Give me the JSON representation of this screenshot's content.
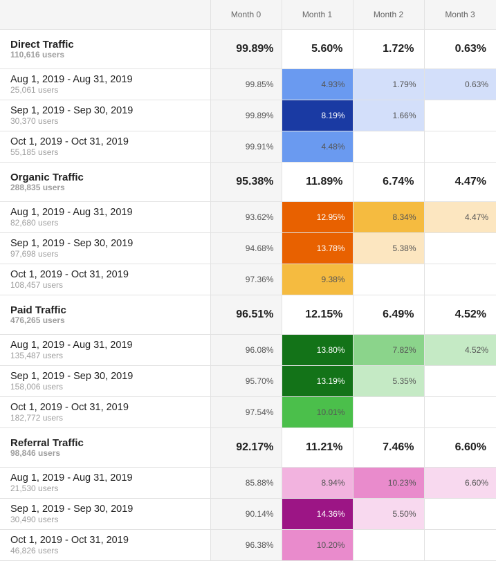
{
  "header": {
    "columns": [
      "Month 0",
      "Month 1",
      "Month 2",
      "Month 3"
    ]
  },
  "chart_data": {
    "type": "table",
    "columns": [
      "Month 0",
      "Month 1",
      "Month 2",
      "Month 3"
    ],
    "segments": [
      {
        "name": "Direct Traffic",
        "users": "110,616 users",
        "totals": [
          "99.89%",
          "5.60%",
          "1.72%",
          "0.63%"
        ],
        "rows": [
          {
            "label": "Aug 1, 2019 - Aug 31, 2019",
            "users": "25,061 users",
            "values": [
              "99.85%",
              "4.93%",
              "1.79%",
              "0.63%"
            ],
            "colors": [
              "#f5f5f5",
              "#6a9af0",
              "#d3dffa",
              "#d3dffa"
            ],
            "text_colors": [
              "#555555",
              "#555555",
              "#555555",
              "#555555"
            ]
          },
          {
            "label": "Sep 1, 2019 - Sep 30, 2019",
            "users": "30,370 users",
            "values": [
              "99.89%",
              "8.19%",
              "1.66%",
              ""
            ],
            "colors": [
              "#f5f5f5",
              "#1a3aa3",
              "#d3dffa",
              "#ffffff"
            ],
            "text_colors": [
              "#555555",
              "#ffffff",
              "#555555",
              "#555555"
            ]
          },
          {
            "label": "Oct 1, 2019 - Oct 31, 2019",
            "users": "55,185 users",
            "values": [
              "99.91%",
              "4.48%",
              "",
              ""
            ],
            "colors": [
              "#f5f5f5",
              "#6a9af0",
              "#ffffff",
              "#ffffff"
            ],
            "text_colors": [
              "#555555",
              "#555555",
              "#555555",
              "#555555"
            ]
          }
        ]
      },
      {
        "name": "Organic Traffic",
        "users": "288,835 users",
        "totals": [
          "95.38%",
          "11.89%",
          "6.74%",
          "4.47%"
        ],
        "rows": [
          {
            "label": "Aug 1, 2019 - Aug 31, 2019",
            "users": "82,680 users",
            "values": [
              "93.62%",
              "12.95%",
              "8.34%",
              "4.47%"
            ],
            "colors": [
              "#f5f5f5",
              "#e86100",
              "#f5bb40",
              "#fce6c0"
            ],
            "text_colors": [
              "#555555",
              "#ffffff",
              "#555555",
              "#555555"
            ]
          },
          {
            "label": "Sep 1, 2019 - Sep 30, 2019",
            "users": "97,698 users",
            "values": [
              "94.68%",
              "13.78%",
              "5.38%",
              ""
            ],
            "colors": [
              "#f5f5f5",
              "#e86100",
              "#fce6c0",
              "#ffffff"
            ],
            "text_colors": [
              "#555555",
              "#ffffff",
              "#555555",
              "#555555"
            ]
          },
          {
            "label": "Oct 1, 2019 - Oct 31, 2019",
            "users": "108,457 users",
            "values": [
              "97.36%",
              "9.38%",
              "",
              ""
            ],
            "colors": [
              "#f5f5f5",
              "#f5bb40",
              "#ffffff",
              "#ffffff"
            ],
            "text_colors": [
              "#555555",
              "#555555",
              "#555555",
              "#555555"
            ]
          }
        ]
      },
      {
        "name": "Paid Traffic",
        "users": "476,265 users",
        "totals": [
          "96.51%",
          "12.15%",
          "6.49%",
          "4.52%"
        ],
        "rows": [
          {
            "label": "Aug 1, 2019 - Aug 31, 2019",
            "users": "135,487 users",
            "values": [
              "96.08%",
              "13.80%",
              "7.82%",
              "4.52%"
            ],
            "colors": [
              "#f5f5f5",
              "#137318",
              "#8bd48b",
              "#c5eac5"
            ],
            "text_colors": [
              "#555555",
              "#ffffff",
              "#555555",
              "#555555"
            ]
          },
          {
            "label": "Sep 1, 2019 - Sep 30, 2019",
            "users": "158,006 users",
            "values": [
              "95.70%",
              "13.19%",
              "5.35%",
              ""
            ],
            "colors": [
              "#f5f5f5",
              "#137318",
              "#c5eac5",
              "#ffffff"
            ],
            "text_colors": [
              "#555555",
              "#ffffff",
              "#555555",
              "#555555"
            ]
          },
          {
            "label": "Oct 1, 2019 - Oct 31, 2019",
            "users": "182,772 users",
            "values": [
              "97.54%",
              "10.01%",
              "",
              ""
            ],
            "colors": [
              "#f5f5f5",
              "#4bbf4b",
              "#ffffff",
              "#ffffff"
            ],
            "text_colors": [
              "#555555",
              "#555555",
              "#555555",
              "#555555"
            ]
          }
        ]
      },
      {
        "name": "Referral Traffic",
        "users": "98,846 users",
        "totals": [
          "92.17%",
          "11.21%",
          "7.46%",
          "6.60%"
        ],
        "rows": [
          {
            "label": "Aug 1, 2019 - Aug 31, 2019",
            "users": "21,530 users",
            "values": [
              "85.88%",
              "8.94%",
              "10.23%",
              "6.60%"
            ],
            "colors": [
              "#f5f5f5",
              "#f2b3df",
              "#e98bcc",
              "#f8d9ef"
            ],
            "text_colors": [
              "#555555",
              "#555555",
              "#555555",
              "#555555"
            ]
          },
          {
            "label": "Sep 1, 2019 - Sep 30, 2019",
            "users": "30,490 users",
            "values": [
              "90.14%",
              "14.36%",
              "5.50%",
              ""
            ],
            "colors": [
              "#f5f5f5",
              "#9c1585",
              "#f8d9ef",
              "#ffffff"
            ],
            "text_colors": [
              "#555555",
              "#ffffff",
              "#555555",
              "#555555"
            ]
          },
          {
            "label": "Oct 1, 2019 - Oct 31, 2019",
            "users": "46,826 users",
            "values": [
              "96.38%",
              "10.20%",
              "",
              ""
            ],
            "colors": [
              "#f5f5f5",
              "#e98bcc",
              "#ffffff",
              "#ffffff"
            ],
            "text_colors": [
              "#555555",
              "#555555",
              "#555555",
              "#555555"
            ]
          }
        ]
      }
    ]
  }
}
